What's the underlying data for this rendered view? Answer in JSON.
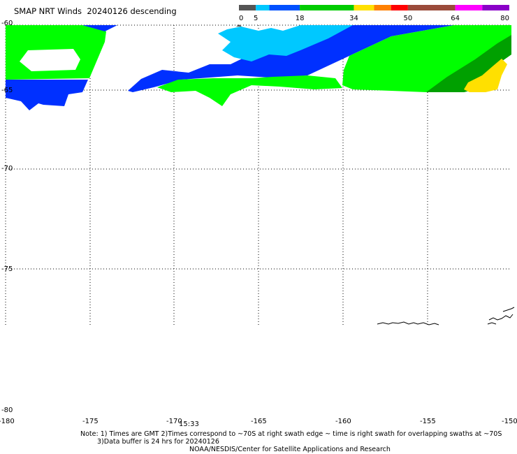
{
  "title": "SMAP NRT Winds  20240126 descending",
  "colorbar": {
    "ticks": [
      "0",
      "5",
      "18",
      "34",
      "50",
      "64",
      "80"
    ],
    "segments": [
      {
        "from": 0,
        "to": 5,
        "color": "#555555"
      },
      {
        "from": 5,
        "to": 9,
        "color": "#00c8ff"
      },
      {
        "from": 9,
        "to": 18,
        "color": "#0050ff"
      },
      {
        "from": 18,
        "to": 34,
        "color": "#00cc00"
      },
      {
        "from": 34,
        "to": 40,
        "color": "#ffe000"
      },
      {
        "from": 40,
        "to": 45,
        "color": "#ff8000"
      },
      {
        "from": 45,
        "to": 50,
        "color": "#ff0000"
      },
      {
        "from": 50,
        "to": 64,
        "color": "#9a4a3a"
      },
      {
        "from": 64,
        "to": 72,
        "color": "#ff00ff"
      },
      {
        "from": 72,
        "to": 80,
        "color": "#8a00c8"
      }
    ]
  },
  "map": {
    "lon_labels": [
      "-180",
      "-175",
      "-170",
      "-165",
      "-160",
      "-155",
      "-150"
    ],
    "lat_labels": [
      "-60",
      "-65",
      "-70",
      "-75",
      "-80"
    ],
    "time_label": "15:33"
  },
  "footer": {
    "line1": "Note: 1) Times are GMT 2)Times correspond to ~70S at right swath edge ~ time is right swath for overlapping swaths at ~70S",
    "line2": "3)Data buffer is 24 hrs for 20240126",
    "line3": "NOAA/NESDIS/Center for Satellite Applications and Research"
  }
}
